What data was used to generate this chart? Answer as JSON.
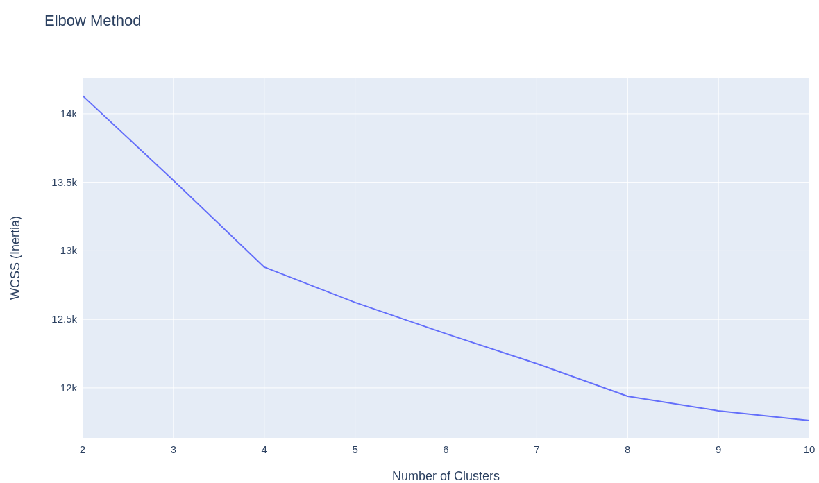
{
  "chart_data": {
    "type": "line",
    "title": "Elbow Method",
    "xlabel": "Number of Clusters",
    "ylabel": "WCSS (Inertia)",
    "x": [
      2,
      3,
      4,
      5,
      6,
      7,
      8,
      9,
      10
    ],
    "series": [
      {
        "color": "#636efa",
        "values": [
          14132,
          13514,
          12881,
          12623,
          12395,
          12177,
          11939,
          11833,
          11762
        ]
      }
    ],
    "xlim": [
      2,
      10
    ],
    "xticks": [
      2,
      3,
      4,
      5,
      6,
      7,
      8,
      9,
      10
    ],
    "ylim": [
      11635,
      14263
    ],
    "yticks": [
      {
        "value": 12000,
        "label": "12k"
      },
      {
        "value": 12500,
        "label": "12.5k"
      },
      {
        "value": 13000,
        "label": "13k"
      },
      {
        "value": 13500,
        "label": "13.5k"
      },
      {
        "value": 14000,
        "label": "14k"
      }
    ],
    "grid": true,
    "marker": "none",
    "line_style": "solid"
  }
}
